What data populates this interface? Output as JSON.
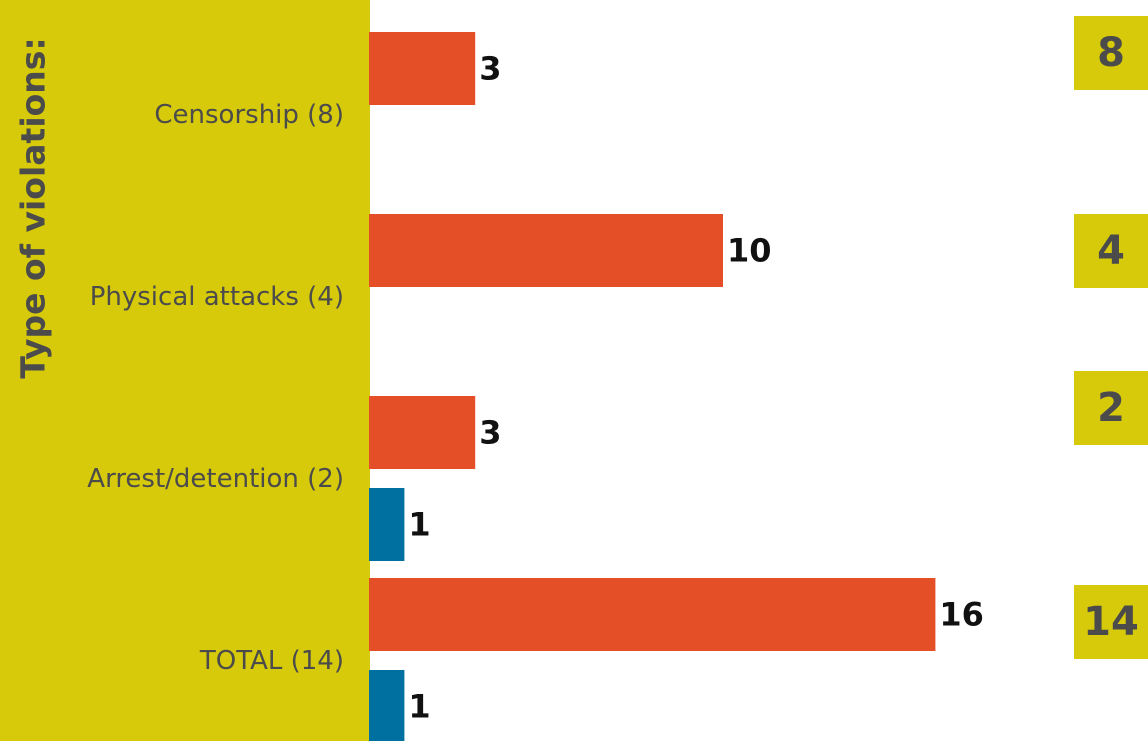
{
  "chart_data": {
    "type": "bar",
    "orientation": "horizontal",
    "ylabel": "Type of violations:",
    "categories": [
      "Censorship (8)",
      "Physical attacks (4)",
      "Arrest/detention (2)",
      "TOTAL (14)"
    ],
    "series": [
      {
        "color": "#e44f27",
        "values": [
          3,
          10,
          3,
          16
        ]
      },
      {
        "color": "#0070a0",
        "values": [
          null,
          null,
          1,
          1
        ]
      }
    ],
    "totals": [
      "8",
      "4",
      "2",
      "14"
    ],
    "xlim": [
      0,
      16
    ]
  },
  "colors": {
    "panel": "#d6ca0a",
    "label_text": "#4b4b4b",
    "value_text": "#111111"
  }
}
